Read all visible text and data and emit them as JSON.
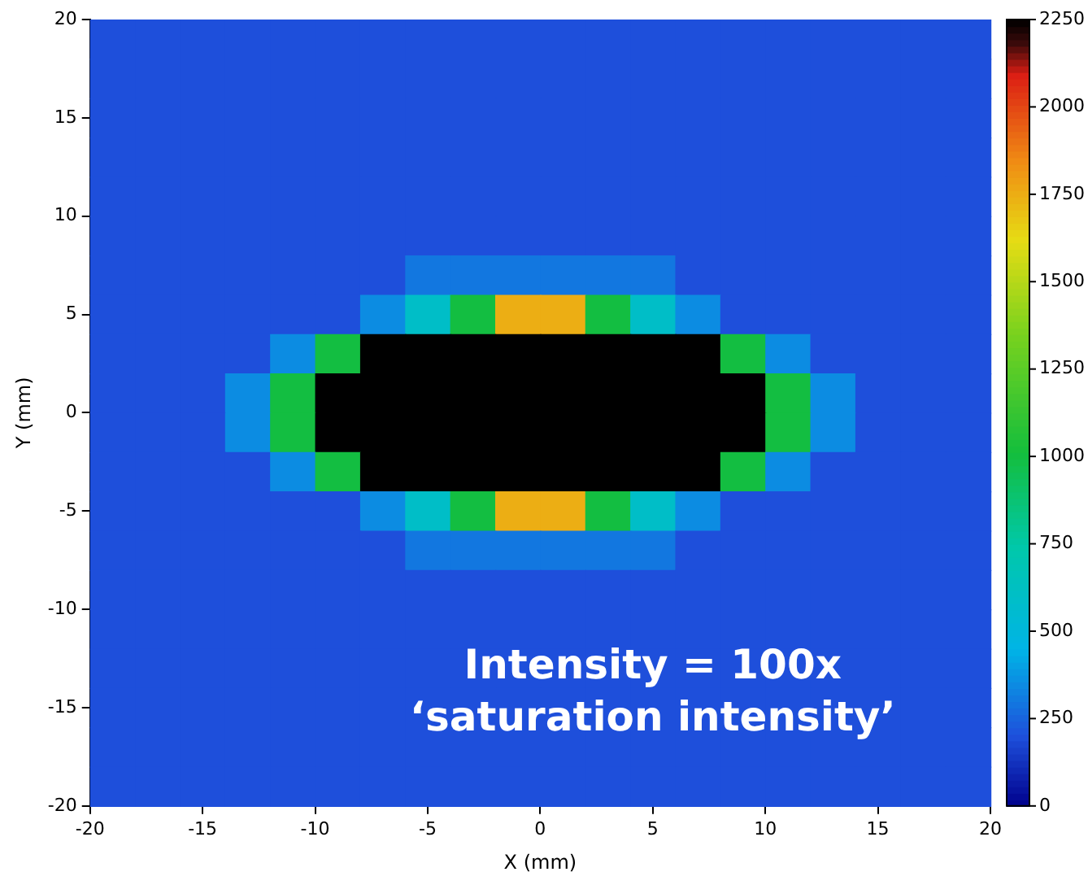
{
  "chart_data": {
    "type": "heatmap",
    "xlabel": "X (mm)",
    "ylabel": "Y (mm)",
    "xlim": [
      -20,
      20
    ],
    "ylim": [
      -20,
      20
    ],
    "xticks": [
      -20,
      -15,
      -10,
      -5,
      0,
      5,
      10,
      15,
      20
    ],
    "yticks": [
      -20,
      -15,
      -10,
      -5,
      0,
      5,
      10,
      15,
      20
    ],
    "clim": [
      0,
      2250
    ],
    "cticks": [
      0,
      250,
      500,
      750,
      1000,
      1250,
      1500,
      1750,
      2000,
      2250
    ],
    "grid": false,
    "annotations": [
      "Intensity = 100x",
      "‘saturation intensity’"
    ],
    "cells": [
      [
        200,
        200,
        200,
        200,
        200,
        200,
        200,
        200,
        200,
        200,
        200,
        200,
        200,
        200,
        200,
        200,
        200,
        200,
        200,
        200
      ],
      [
        200,
        200,
        200,
        200,
        200,
        200,
        200,
        200,
        200,
        200,
        200,
        200,
        200,
        200,
        200,
        200,
        200,
        200,
        200,
        200
      ],
      [
        200,
        200,
        200,
        200,
        200,
        200,
        200,
        200,
        200,
        200,
        200,
        200,
        200,
        200,
        200,
        200,
        200,
        200,
        200,
        200
      ],
      [
        200,
        200,
        200,
        200,
        200,
        200,
        200,
        200,
        200,
        200,
        200,
        200,
        200,
        200,
        200,
        200,
        200,
        200,
        200,
        200
      ],
      [
        200,
        200,
        200,
        200,
        200,
        200,
        200,
        200,
        200,
        200,
        200,
        200,
        200,
        200,
        200,
        200,
        200,
        200,
        200,
        200
      ],
      [
        200,
        200,
        200,
        200,
        200,
        200,
        200,
        200,
        200,
        200,
        200,
        200,
        200,
        200,
        200,
        200,
        200,
        200,
        200,
        200
      ],
      [
        200,
        200,
        200,
        200,
        200,
        200,
        200,
        300,
        300,
        300,
        300,
        300,
        300,
        200,
        200,
        200,
        200,
        200,
        200,
        200
      ],
      [
        200,
        200,
        200,
        200,
        200,
        200,
        350,
        600,
        1000,
        1750,
        1750,
        1000,
        600,
        350,
        200,
        200,
        200,
        200,
        200,
        200
      ],
      [
        200,
        200,
        200,
        200,
        350,
        1000,
        2250,
        2250,
        2250,
        2250,
        2250,
        2250,
        2250,
        2250,
        1000,
        350,
        200,
        200,
        200,
        200
      ],
      [
        200,
        200,
        200,
        350,
        1000,
        2250,
        2250,
        2250,
        2250,
        2250,
        2250,
        2250,
        2250,
        2250,
        2250,
        1000,
        350,
        200,
        200,
        200
      ],
      [
        200,
        200,
        200,
        350,
        1000,
        2250,
        2250,
        2250,
        2250,
        2250,
        2250,
        2250,
        2250,
        2250,
        2250,
        1000,
        350,
        200,
        200,
        200
      ],
      [
        200,
        200,
        200,
        200,
        350,
        1000,
        2250,
        2250,
        2250,
        2250,
        2250,
        2250,
        2250,
        2250,
        1000,
        350,
        200,
        200,
        200,
        200
      ],
      [
        200,
        200,
        200,
        200,
        200,
        200,
        350,
        600,
        1000,
        1750,
        1750,
        1000,
        600,
        350,
        200,
        200,
        200,
        200,
        200,
        200
      ],
      [
        200,
        200,
        200,
        200,
        200,
        200,
        200,
        300,
        300,
        300,
        300,
        300,
        300,
        200,
        200,
        200,
        200,
        200,
        200,
        200
      ],
      [
        200,
        200,
        200,
        200,
        200,
        200,
        200,
        200,
        200,
        200,
        200,
        200,
        200,
        200,
        200,
        200,
        200,
        200,
        200,
        200
      ],
      [
        200,
        200,
        200,
        200,
        200,
        200,
        200,
        200,
        200,
        200,
        200,
        200,
        200,
        200,
        200,
        200,
        200,
        200,
        200,
        200
      ],
      [
        200,
        200,
        200,
        200,
        200,
        200,
        200,
        200,
        200,
        200,
        200,
        200,
        200,
        200,
        200,
        200,
        200,
        200,
        200,
        200
      ],
      [
        200,
        200,
        200,
        200,
        200,
        200,
        200,
        200,
        200,
        200,
        200,
        200,
        200,
        200,
        200,
        200,
        200,
        200,
        200,
        200
      ],
      [
        200,
        200,
        200,
        200,
        200,
        200,
        200,
        200,
        200,
        200,
        200,
        200,
        200,
        200,
        200,
        200,
        200,
        200,
        200,
        200
      ],
      [
        200,
        200,
        200,
        200,
        200,
        200,
        200,
        200,
        200,
        200,
        200,
        200,
        200,
        200,
        200,
        200,
        200,
        200,
        200,
        200
      ]
    ]
  }
}
